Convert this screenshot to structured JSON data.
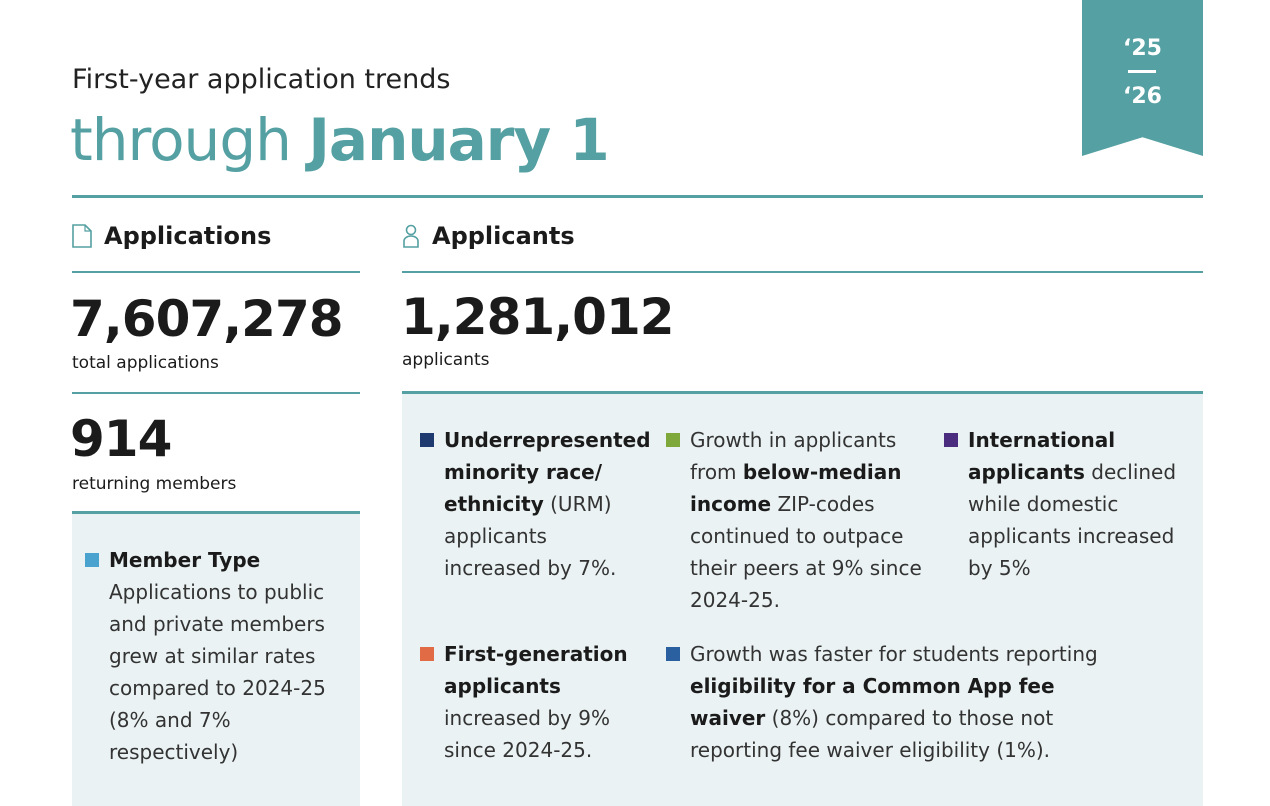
{
  "header": {
    "subtitle": "First-year application trends",
    "title_light": "through ",
    "title_bold": "January 1",
    "badge_top": "‘25",
    "badge_bottom": "‘26"
  },
  "applications": {
    "heading": "Applications",
    "total": "7,607,278",
    "total_label": "total applications",
    "members": "914",
    "members_label": "returning members",
    "member_type": {
      "color": "#4aa3cf",
      "bold": "Member Type",
      "text": "Applications to public and private members grew at similar rates compared to 2024-25 (8% and 7% respectively)"
    }
  },
  "applicants": {
    "heading": "Applicants",
    "total": "1,281,012",
    "total_label": "applicants",
    "items": [
      {
        "color": "#1f3a6e",
        "pre": "",
        "bold": "Underrepresented minority race/ ethnicity",
        "post": " (URM) applicants increased by 7%."
      },
      {
        "color": "#7fa83a",
        "pre": "Growth in applicants from ",
        "bold": "below-median income",
        "post": " ZIP-codes continued to outpace their peers at 9% since 2024-25."
      },
      {
        "color": "#4b2d7f",
        "pre": "",
        "bold": "International applicants",
        "post": " declined while domestic applicants increased by 5%"
      },
      {
        "color": "#e06b45",
        "pre": "",
        "bold": "First-generation applicants",
        "post": " increased by 9% since 2024-25."
      },
      {
        "color": "#2a5fa0",
        "pre": "Growth was faster for students reporting ",
        "bold": "eligibility for a Common App fee waiver",
        "post": " (8%) compared to those not reporting fee waiver eligibility (1%)."
      }
    ]
  },
  "colors": {
    "accent": "#55a0a2",
    "panel": "#eaf2f3"
  }
}
